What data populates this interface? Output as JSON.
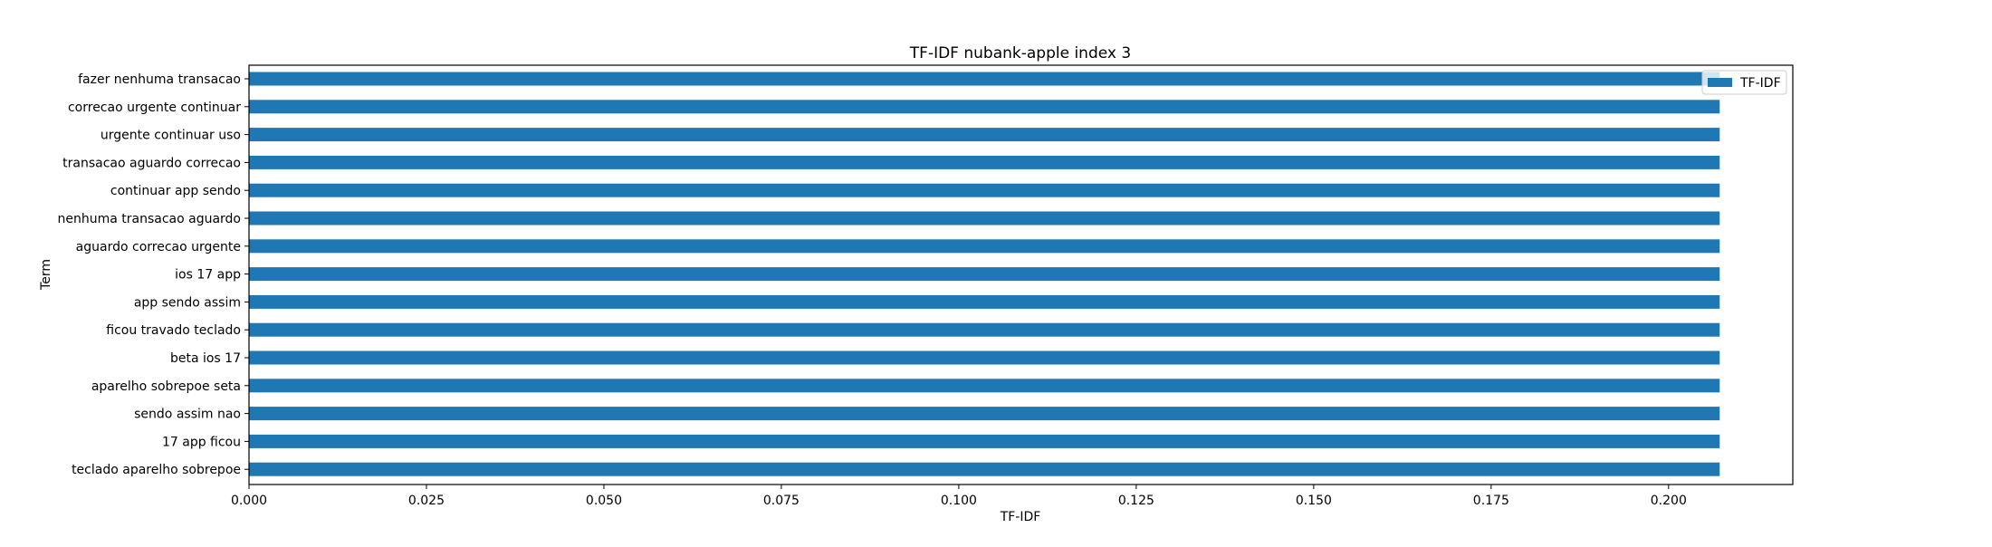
{
  "chart_data": {
    "type": "bar",
    "orientation": "horizontal",
    "title": "TF-IDF nubank-apple index 3",
    "xlabel": "TF-IDF",
    "ylabel": "Term",
    "xlim": [
      0,
      0.2175
    ],
    "xticks": [
      "0.000",
      "0.025",
      "0.050",
      "0.075",
      "0.100",
      "0.125",
      "0.150",
      "0.175",
      "0.200"
    ],
    "xtick_values": [
      0,
      0.025,
      0.05,
      0.075,
      0.1,
      0.125,
      0.15,
      0.175,
      0.2
    ],
    "grid": false,
    "legend_position": "top-right",
    "bar_color": "#1f77b4",
    "categories": [
      "fazer nenhuma transacao",
      "correcao urgente continuar",
      "urgente continuar uso",
      "transacao aguardo correcao",
      "continuar app sendo",
      "nenhuma transacao aguardo",
      "aguardo correcao urgente",
      "ios 17 app",
      "app sendo assim",
      "ficou travado teclado",
      "beta ios 17",
      "aparelho sobrepoe seta",
      "sendo assim nao",
      "17 app ficou",
      "teclado aparelho sobrepoe"
    ],
    "series": [
      {
        "name": "TF-IDF",
        "values": [
          0.2072,
          0.2072,
          0.2072,
          0.2072,
          0.2072,
          0.2072,
          0.2072,
          0.2072,
          0.2072,
          0.2072,
          0.2072,
          0.2072,
          0.2072,
          0.2072,
          0.2072
        ]
      }
    ]
  }
}
